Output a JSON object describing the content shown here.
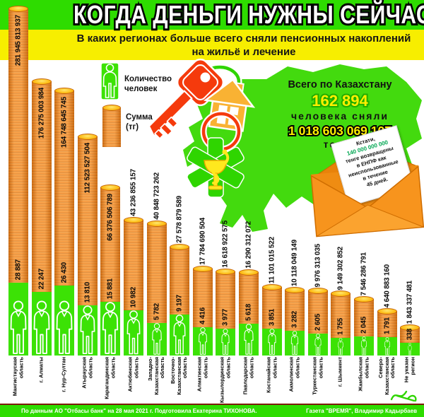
{
  "title": "КОГДА ДЕНЬГИ НУЖНЫ СЕЙЧАС",
  "subtitle": "В каких регионах больше всего сняли пенсионных накоплений на жильё и лечение",
  "legend": {
    "people_label": "Количество\nчеловек",
    "sum_label": "Сумма\n(тг)"
  },
  "kazakhstan_total": {
    "heading": "Всего по Казахстану",
    "people": "162 894",
    "people_caption": "человека сняли",
    "amount": "1 018 603 069 107",
    "amount_caption": "тенге"
  },
  "note": {
    "intro": "Кстати,",
    "amount": "140 000 000 000",
    "body": "тенге возвращены\nв ЕНПФ как\nнеиспользованные\nв течение\n45 дней."
  },
  "footer": {
    "left": "По данным АО \"Отбасы банк\" на 28 мая 2021 г. Подготовила Екатерина ТИХОНОВА.",
    "right": "Газета \"ВРЕМЯ\", Владимир Кадырбаев"
  },
  "colors": {
    "header_green": "#2edc00",
    "subtitle_yellow": "#f7ee00",
    "bar_orange": "#f5891e",
    "bar_stripe": "#c96508",
    "coin_top_yellow": "#fdbb13",
    "figure_green": "#3ce205",
    "map_green": "#43da0e",
    "key_red": "#f53a0c",
    "house_orange": "#f9b233",
    "medical_green": "#2fd500",
    "highlight_yellow": "#ffef00",
    "note_green": "#00a651",
    "envelope_orange": "#f7941d"
  },
  "chart_data": {
    "type": "bar",
    "title": "В каких регионах больше всего сняли пенсионных накоплений на жильё и лечение",
    "scale": "sqrt",
    "legend_position": "top-left",
    "categories": [
      "Мангистауская область",
      "г. Алматы",
      "г. Нур-Султан",
      "Атырауская область",
      "Карагандинская область",
      "Актюбинская область",
      "Западно-Казахстанская область",
      "Восточно-Казахстанская область",
      "Алматинская область",
      "Кызылординская область",
      "Павлодарская область",
      "Костанайская область",
      "Акмолинская область",
      "Туркестанская область",
      "г. Шымкент",
      "Жамбылская область",
      "Северо-Казахстанская область",
      "Не указан регион"
    ],
    "category_lines": [
      [
        "Мангистауская",
        "область"
      ],
      [
        "г. Алматы"
      ],
      [
        "г. Нур-Султан"
      ],
      [
        "Атырауская",
        "область"
      ],
      [
        "Карагандинская",
        "область"
      ],
      [
        "Актюбинская",
        "область"
      ],
      [
        "Западно-",
        "Казахстанская",
        "область"
      ],
      [
        "Восточно-",
        "Казахстанская",
        "область"
      ],
      [
        "Алматинская",
        "область"
      ],
      [
        "Кызылординская",
        "область"
      ],
      [
        "Павлодарская",
        "область"
      ],
      [
        "Костанайская",
        "область"
      ],
      [
        "Акмолинская",
        "область"
      ],
      [
        "Туркестанская",
        "область"
      ],
      [
        "г. Шымкент"
      ],
      [
        "Жамбылская",
        "область"
      ],
      [
        "Северо-",
        "Казахстанская",
        "область"
      ],
      [
        "Не указан",
        "регион"
      ]
    ],
    "series": [
      {
        "name": "Сумма (тг)",
        "values": [
          281945813937,
          176275003984,
          164748645745,
          112523527504,
          66376506789,
          43236855157,
          40848723262,
          27578879589,
          17784690504,
          16618922575,
          16290312072,
          11101015522,
          10118049149,
          9976313035,
          9149302852,
          7546286791,
          4640883160,
          1843337481
        ],
        "labels": [
          "281 945 813 937",
          "176 275 003 984",
          "164 748 645 745",
          "112 523 527 504",
          "66 376 506 789",
          "43 236 855 157",
          "40 848 723 262",
          "27 578 879 589",
          "17 784 690 504",
          "16 618 922 575",
          "16 290 312 072",
          "11 101 015 522",
          "10 118 049 149",
          "9 976 313 035",
          "9 149 302 852",
          "7 546 286 791",
          "4 640 883 160",
          "1 843 337 481"
        ]
      },
      {
        "name": "Количество человек",
        "values": [
          28887,
          22247,
          26430,
          13810,
          15881,
          10982,
          5782,
          9197,
          4416,
          3977,
          5618,
          3851,
          3282,
          2605,
          1755,
          2045,
          1791,
          338
        ],
        "labels": [
          "28 887",
          "22 247",
          "26 430",
          "13 810",
          "15 881",
          "10 982",
          "5 782",
          "9 197",
          "4 416",
          "3 977",
          "5 618",
          "3 851",
          "3 282",
          "2 605",
          "1 755",
          "2 045",
          "1 791",
          "338"
        ]
      }
    ]
  }
}
